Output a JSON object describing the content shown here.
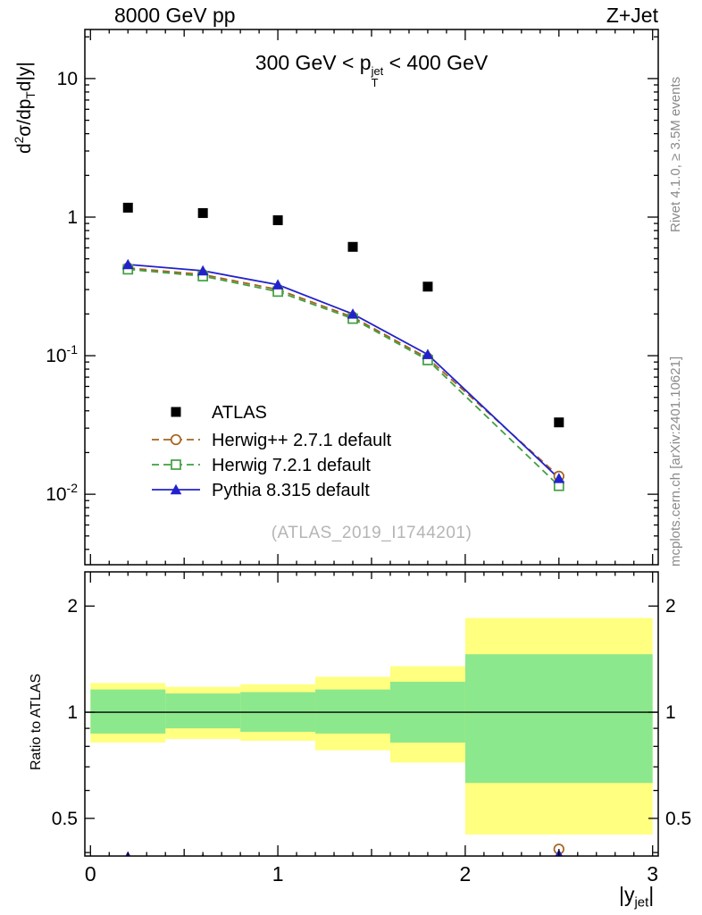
{
  "header": {
    "left": "8000 GeV pp",
    "right": "Z+Jet"
  },
  "panel_title": {
    "before": "300 GeV < p",
    "sup": "jet",
    "sub": "T",
    "after": " < 400 GeV"
  },
  "ylabel": {
    "p1": "d",
    "sup": "2",
    "p2": "σ/dp",
    "sub": "T",
    "p3": "d|y|"
  },
  "xlabel": {
    "p1": "|y",
    "sub": "jet",
    "p2": "|"
  },
  "ratio_label": "Ratio to ATLAS",
  "watermark": "(ATLAS_2019_I1744201)",
  "side_notes": {
    "top": "Rivet 4.1.0, ≥ 3.5M events",
    "bottom": "mcplots.cern.ch [arXiv:2401.10621]"
  },
  "chart_data": {
    "type": "line",
    "title": "300 GeV < pT(jet) < 400 GeV",
    "xlabel": "|y_jet|",
    "ylabel": "d^2(sigma)/dpT d|y|",
    "x": [
      0.2,
      0.6,
      1.0,
      1.4,
      1.8,
      2.5
    ],
    "bin_edges": [
      0,
      0.4,
      0.8,
      1.2,
      1.6,
      2.0,
      3.0
    ],
    "series": [
      {
        "name": "ATLAS",
        "color": "#000000",
        "marker": "square-filled",
        "line": "none",
        "values": [
          1.17,
          1.07,
          0.95,
          0.61,
          0.315,
          0.033
        ]
      },
      {
        "name": "Herwig++ 2.7.1 default",
        "color": "#a5641e",
        "marker": "circle-open",
        "line": "dashed",
        "values": [
          0.43,
          0.385,
          0.3,
          0.19,
          0.096,
          0.0135
        ]
      },
      {
        "name": "Herwig 7.2.1 default",
        "color": "#3fa03f",
        "marker": "square-open",
        "line": "dashed",
        "values": [
          0.42,
          0.375,
          0.29,
          0.185,
          0.093,
          0.0115
        ]
      },
      {
        "name": "Pythia 8.315 default",
        "color": "#2222cc",
        "marker": "triangle-filled",
        "line": "solid",
        "values": [
          0.455,
          0.41,
          0.325,
          0.2,
          0.102,
          0.013
        ]
      }
    ],
    "main_axis": {
      "x_range": [
        -0.03,
        3.03
      ],
      "y_range": [
        0.0031,
        22.6
      ],
      "y_scale": "log",
      "x_ticks": [
        {
          "v": 0,
          "label": "0"
        },
        {
          "v": 1,
          "label": "1"
        },
        {
          "v": 2,
          "label": "2"
        },
        {
          "v": 3,
          "label": "3"
        }
      ],
      "y_ticks": [
        {
          "v": 10,
          "label": "10"
        },
        {
          "v": 1,
          "label": "1"
        },
        {
          "v": 0.1,
          "label": "10",
          "exp": "-1"
        },
        {
          "v": 0.01,
          "label": "10",
          "exp": "-2"
        }
      ]
    },
    "ratio": {
      "y_range": [
        0.391,
        2.5
      ],
      "y_scale": "log",
      "reference_line": 1,
      "y_ticks": [
        {
          "v": 0.5,
          "label": "0.5"
        },
        {
          "v": 1,
          "label": "1"
        },
        {
          "v": 2,
          "label": "2"
        }
      ],
      "band_colors": {
        "outer": "#ffff80",
        "inner": "#8ce88c"
      },
      "bands": [
        {
          "x0": 0.0,
          "x1": 0.4,
          "outer": [
            0.82,
            1.21
          ],
          "inner": [
            0.87,
            1.16
          ]
        },
        {
          "x0": 0.4,
          "x1": 0.8,
          "outer": [
            0.84,
            1.18
          ],
          "inner": [
            0.9,
            1.13
          ]
        },
        {
          "x0": 0.8,
          "x1": 1.2,
          "outer": [
            0.83,
            1.2
          ],
          "inner": [
            0.88,
            1.14
          ]
        },
        {
          "x0": 1.2,
          "x1": 1.6,
          "outer": [
            0.78,
            1.26
          ],
          "inner": [
            0.87,
            1.16
          ]
        },
        {
          "x0": 1.6,
          "x1": 2.0,
          "outer": [
            0.72,
            1.35
          ],
          "inner": [
            0.82,
            1.22
          ]
        },
        {
          "x0": 2.0,
          "x1": 3.0,
          "outer": [
            0.45,
            1.85
          ],
          "inner": [
            0.63,
            1.46
          ]
        }
      ]
    },
    "legend_position": "inside-main-bottom-left"
  }
}
